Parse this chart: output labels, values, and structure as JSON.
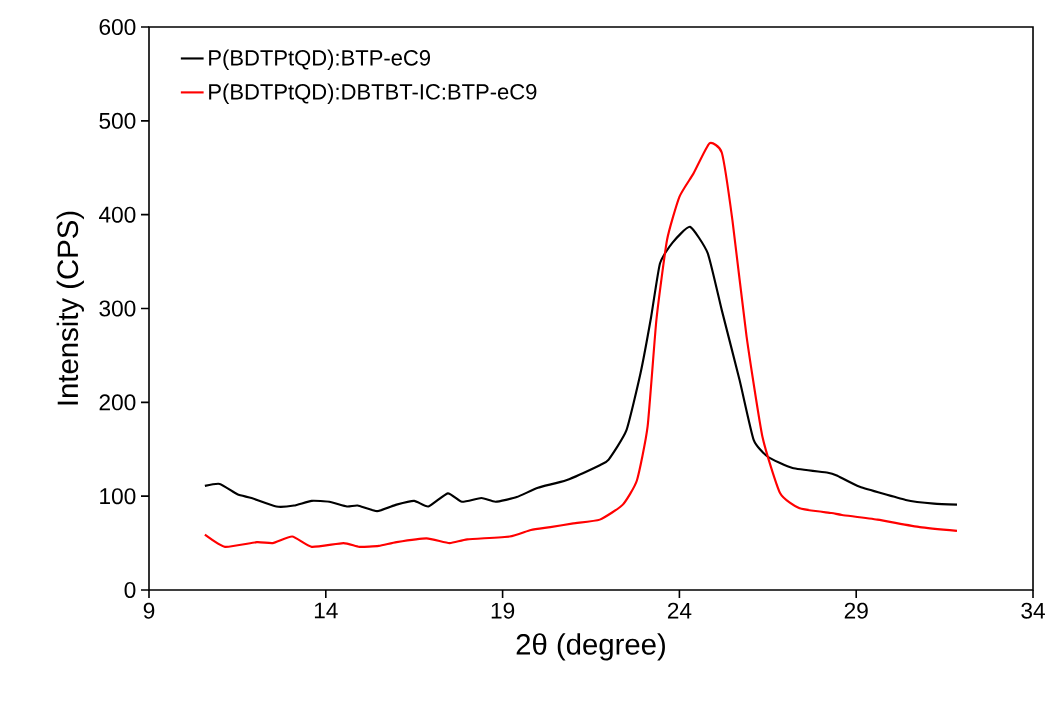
{
  "chart_data": {
    "type": "line",
    "xlabel": "2θ (degree)",
    "ylabel": "Intensity (CPS)",
    "xlim": [
      9,
      34
    ],
    "ylim": [
      0,
      600
    ],
    "xticks": [
      9,
      14,
      19,
      24,
      29,
      34
    ],
    "yticks": [
      0,
      100,
      200,
      300,
      400,
      500,
      600
    ],
    "grid": false,
    "legend": "top left",
    "marker": "none",
    "line_style": "solid",
    "series": [
      {
        "name": "P(BDTPtQD):BTP-eC9",
        "color": "#000000",
        "x": [
          10.58,
          11.0,
          11.5,
          11.9,
          12.6,
          13.1,
          13.6,
          14.1,
          14.6,
          14.9,
          15.45,
          16.0,
          16.5,
          16.9,
          17.45,
          17.85,
          18.4,
          18.8,
          19.4,
          20.0,
          20.8,
          21.75,
          22.0,
          22.5,
          22.9,
          23.2,
          23.45,
          23.8,
          24.3,
          24.8,
          25.2,
          25.7,
          26.1,
          26.5,
          27.2,
          28.2,
          28.45,
          29.1,
          30.4,
          31.2,
          31.85
        ],
        "values": [
          111,
          113,
          102,
          98,
          89,
          90,
          95,
          94,
          89,
          90,
          84,
          91,
          95,
          89,
          103,
          94,
          98,
          94,
          99,
          109,
          117,
          133,
          139,
          170,
          231,
          291,
          348,
          370,
          387,
          359,
          298,
          224,
          160,
          142,
          130,
          125,
          122,
          110,
          96,
          92,
          91
        ]
      },
      {
        "name": "P(BDTPtQD):DBTBT-IC:BTP-eC9",
        "color": "#ff0000",
        "x": [
          10.58,
          11.15,
          12.05,
          12.5,
          13.05,
          13.6,
          14.5,
          14.95,
          15.5,
          16.0,
          16.85,
          17.5,
          18.0,
          19.2,
          19.8,
          20.35,
          21.0,
          21.75,
          22.4,
          22.8,
          23.1,
          23.35,
          23.65,
          24.0,
          24.4,
          24.85,
          25.2,
          25.5,
          25.9,
          26.35,
          26.85,
          27.4,
          28.3,
          28.6,
          29.6,
          30.8,
          31.85
        ],
        "values": [
          59,
          46,
          51,
          50,
          57,
          46,
          50,
          46,
          47,
          51,
          55,
          50,
          54,
          57,
          64,
          67,
          71,
          75,
          91,
          117,
          174,
          288,
          373,
          419,
          444,
          476,
          466,
          394,
          270,
          163,
          103,
          87,
          82,
          80,
          75,
          67,
          63
        ]
      }
    ]
  }
}
